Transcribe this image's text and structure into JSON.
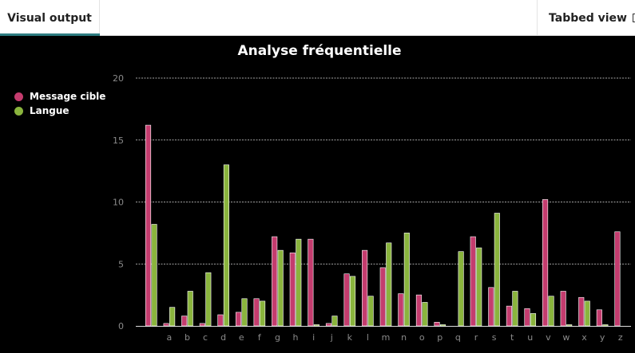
{
  "tabs": {
    "active_label": "Visual output",
    "right_label": "Tabbed view",
    "right_icon": "window-icon"
  },
  "colors": {
    "series1": "#c43c6e",
    "series2": "#8ab43d",
    "background": "#000000",
    "grid": "#ffffff",
    "tick": "#8a8a8a",
    "accent": "#2e7d82"
  },
  "chart_data": {
    "type": "bar",
    "title": "Analyse fréquentielle",
    "xlabel": "",
    "ylabel": "",
    "ylim": [
      0,
      20
    ],
    "yticks": [
      0,
      5,
      10,
      15,
      20
    ],
    "grid": true,
    "legend_position": "top-left",
    "categories": [
      "",
      "a",
      "b",
      "c",
      "d",
      "e",
      "f",
      "g",
      "h",
      "i",
      "j",
      "k",
      "l",
      "m",
      "n",
      "o",
      "p",
      "q",
      "r",
      "s",
      "t",
      "u",
      "v",
      "w",
      "x",
      "y",
      "z"
    ],
    "series": [
      {
        "name": "Message cible",
        "values": [
          16.2,
          0.2,
          0.8,
          0.2,
          0.9,
          1.1,
          2.2,
          7.2,
          5.9,
          7.0,
          0.2,
          4.2,
          6.1,
          4.7,
          2.6,
          2.5,
          0.3,
          0,
          7.2,
          3.1,
          1.6,
          1.4,
          10.2,
          2.8,
          2.3,
          1.3,
          7.6
        ]
      },
      {
        "name": "Langue",
        "values": [
          8.2,
          1.5,
          2.8,
          4.3,
          13.0,
          2.2,
          2.0,
          6.1,
          7.0,
          0.1,
          0.8,
          4.0,
          2.4,
          6.7,
          7.5,
          1.9,
          0.1,
          6.0,
          6.3,
          9.1,
          2.8,
          1.0,
          2.4,
          0.1,
          2.0,
          0.1,
          0
        ]
      }
    ]
  }
}
